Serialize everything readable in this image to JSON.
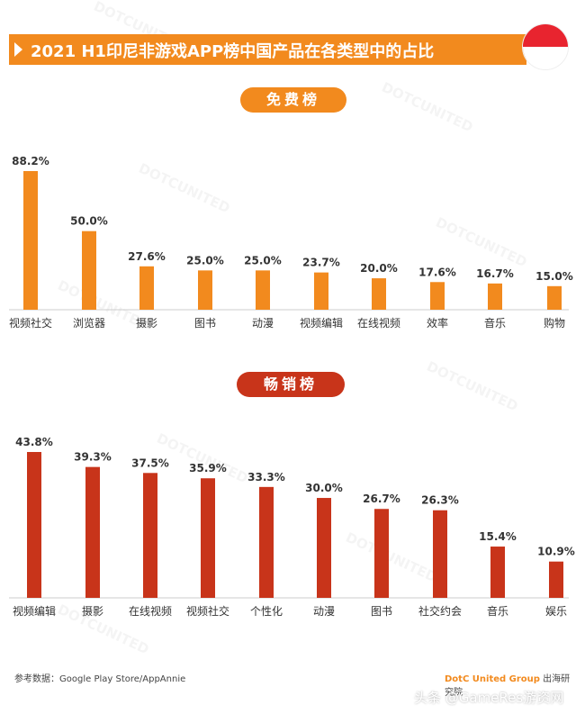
{
  "header": {
    "title": "2021 H1印尼非游戏APP榜中国产品在各类型中的占比"
  },
  "watermark": "DOTCUNITED",
  "chart_data": [
    {
      "type": "bar",
      "title": "免费榜",
      "color": "#f28a1e",
      "categories": [
        "视频社交",
        "浏览器",
        "摄影",
        "图书",
        "动漫",
        "视频编辑",
        "在线视频",
        "效率",
        "音乐",
        "购物"
      ],
      "labels": [
        "88.2%",
        "50.0%",
        "27.6%",
        "25.0%",
        "25.0%",
        "23.7%",
        "20.0%",
        "17.6%",
        "16.7%",
        "15.0%"
      ],
      "values": [
        88.2,
        50.0,
        27.6,
        25.0,
        25.0,
        23.7,
        20.0,
        17.6,
        16.7,
        15.0
      ],
      "ylim": [
        0,
        88.2
      ]
    },
    {
      "type": "bar",
      "title": "畅销榜",
      "color": "#c8341a",
      "categories": [
        "视频编辑",
        "摄影",
        "在线视频",
        "视频社交",
        "个性化",
        "动漫",
        "图书",
        "社交约会",
        "音乐",
        "娱乐"
      ],
      "labels": [
        "43.8%",
        "39.3%",
        "37.5%",
        "35.9%",
        "33.3%",
        "30.0%",
        "26.7%",
        "26.3%",
        "15.4%",
        "10.9%"
      ],
      "values": [
        43.8,
        39.3,
        37.5,
        35.9,
        33.3,
        30.0,
        26.7,
        26.3,
        15.4,
        10.9
      ],
      "ylim": [
        0,
        43.8
      ]
    }
  ],
  "footer": {
    "source": "参考数据：Google Play Store/AppAnnie",
    "brand": "DotC United Group",
    "institute": " 出海研究院",
    "credit": "头条 @GameRes游资网"
  }
}
